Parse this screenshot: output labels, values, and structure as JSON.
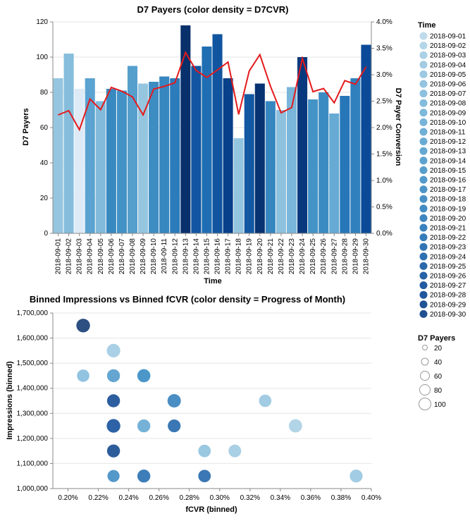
{
  "chart_data": [
    {
      "type": "bar",
      "overlay": "line",
      "title": "D7 Payers (color density = D7CVR)",
      "xlabel": "Time",
      "ylabel": "D7 Payers",
      "y2label": "D7 Payer Conversion",
      "ylim": [
        0,
        120
      ],
      "y2lim": [
        0,
        0.04
      ],
      "yticks": [
        "0",
        "20",
        "40",
        "60",
        "80",
        "100",
        "120"
      ],
      "y2ticks": [
        "0.0%",
        "0.5%",
        "1.0%",
        "1.5%",
        "2.0%",
        "2.5%",
        "3.0%",
        "3.5%",
        "4.0%"
      ],
      "categories": [
        "2018-09-01",
        "2018-09-02",
        "2018-09-03",
        "2018-09-04",
        "2018-09-05",
        "2018-09-06",
        "2018-09-07",
        "2018-09-08",
        "2018-09-09",
        "2018-09-10",
        "2018-09-11",
        "2018-09-12",
        "2018-09-13",
        "2018-09-14",
        "2018-09-15",
        "2018-09-16",
        "2018-09-17",
        "2018-09-18",
        "2018-09-19",
        "2018-09-20",
        "2018-09-21",
        "2018-09-22",
        "2018-09-23",
        "2018-09-24",
        "2018-09-25",
        "2018-09-26",
        "2018-09-27",
        "2018-09-28",
        "2018-09-29",
        "2018-09-30"
      ],
      "values": [
        88,
        102,
        82,
        88,
        75,
        82,
        81,
        95,
        85,
        86,
        89,
        88,
        118,
        95,
        106,
        113,
        88,
        54,
        79,
        85,
        75,
        70,
        83,
        100,
        76,
        80,
        68,
        78,
        88,
        107
      ],
      "conversion": [
        0.0224,
        0.0232,
        0.0196,
        0.0254,
        0.0234,
        0.0276,
        0.0269,
        0.0258,
        0.0224,
        0.0273,
        0.0278,
        0.0285,
        0.0342,
        0.0308,
        0.0295,
        0.0309,
        0.0324,
        0.0225,
        0.0307,
        0.0338,
        0.0278,
        0.0228,
        0.0238,
        0.0331,
        0.0268,
        0.0274,
        0.0247,
        0.0289,
        0.0282,
        0.0315
      ],
      "line_color": "#e41a1c",
      "color_scale": "blues"
    },
    {
      "type": "scatter",
      "title": "Binned Impressions vs Binned fCVR (color density = Progress of Month)",
      "xlabel": "fCVR (binned)",
      "ylabel": "Impressions (binned)",
      "xlim": [
        0.0019,
        0.004
      ],
      "ylim": [
        1000000,
        1700000
      ],
      "xticks": [
        "0.20%",
        "0.22%",
        "0.24%",
        "0.26%",
        "0.28%",
        "0.30%",
        "0.32%",
        "0.34%",
        "0.36%",
        "0.38%",
        "0.40%"
      ],
      "yticks": [
        "1,000,000",
        "1,100,000",
        "1,200,000",
        "1,300,000",
        "1,400,000",
        "1,500,000",
        "1,600,000",
        "1,700,000"
      ],
      "points": [
        {
          "x": 0.0021,
          "y": 1650000,
          "payers": 107,
          "date": "2018-09-30"
        },
        {
          "x": 0.0023,
          "y": 1550000,
          "payers": 102,
          "date": "2018-09-02"
        },
        {
          "x": 0.0021,
          "y": 1450000,
          "payers": 75,
          "date": "2018-09-05"
        },
        {
          "x": 0.0023,
          "y": 1450000,
          "payers": 88,
          "date": "2018-09-12"
        },
        {
          "x": 0.0025,
          "y": 1450000,
          "payers": 95,
          "date": "2018-09-08"
        },
        {
          "x": 0.0025,
          "y": 1450000,
          "payers": 85,
          "date": "2018-09-13"
        },
        {
          "x": 0.0023,
          "y": 1350000,
          "payers": 89,
          "date": "2018-09-25"
        },
        {
          "x": 0.0027,
          "y": 1350000,
          "payers": 100,
          "date": "2018-09-17"
        },
        {
          "x": 0.0033,
          "y": 1350000,
          "payers": 75,
          "date": "2018-09-03"
        },
        {
          "x": 0.0023,
          "y": 1250000,
          "payers": 106,
          "date": "2018-09-24"
        },
        {
          "x": 0.0025,
          "y": 1250000,
          "payers": 88,
          "date": "2018-09-09"
        },
        {
          "x": 0.0027,
          "y": 1250000,
          "payers": 86,
          "date": "2018-09-21"
        },
        {
          "x": 0.0035,
          "y": 1250000,
          "payers": 95,
          "date": "2018-09-01"
        },
        {
          "x": 0.0023,
          "y": 1150000,
          "payers": 88,
          "date": "2018-09-26"
        },
        {
          "x": 0.0029,
          "y": 1150000,
          "payers": 80,
          "date": "2018-09-04"
        },
        {
          "x": 0.0031,
          "y": 1150000,
          "payers": 82,
          "date": "2018-09-02"
        },
        {
          "x": 0.0023,
          "y": 1050000,
          "payers": 70,
          "date": "2018-09-15"
        },
        {
          "x": 0.0025,
          "y": 1050000,
          "payers": 88,
          "date": "2018-09-20"
        },
        {
          "x": 0.0029,
          "y": 1050000,
          "payers": 79,
          "date": "2018-09-21"
        },
        {
          "x": 0.0039,
          "y": 1050000,
          "payers": 85,
          "date": "2018-09-03"
        }
      ],
      "color_scale": "blues"
    }
  ],
  "legend": {
    "time_title": "Time",
    "dates": [
      "2018-09-01",
      "2018-09-02",
      "2018-09-03",
      "2018-09-04",
      "2018-09-05",
      "2018-09-06",
      "2018-09-07",
      "2018-09-08",
      "2018-09-09",
      "2018-09-10",
      "2018-09-11",
      "2018-09-12",
      "2018-09-13",
      "2018-09-14",
      "2018-09-15",
      "2018-09-16",
      "2018-09-17",
      "2018-09-18",
      "2018-09-19",
      "2018-09-20",
      "2018-09-21",
      "2018-09-22",
      "2018-09-23",
      "2018-09-24",
      "2018-09-25",
      "2018-09-26",
      "2018-09-27",
      "2018-09-28",
      "2018-09-29",
      "2018-09-30"
    ],
    "size_title": "D7 Payers",
    "size_values": [
      "20",
      "40",
      "60",
      "80",
      "100"
    ]
  }
}
